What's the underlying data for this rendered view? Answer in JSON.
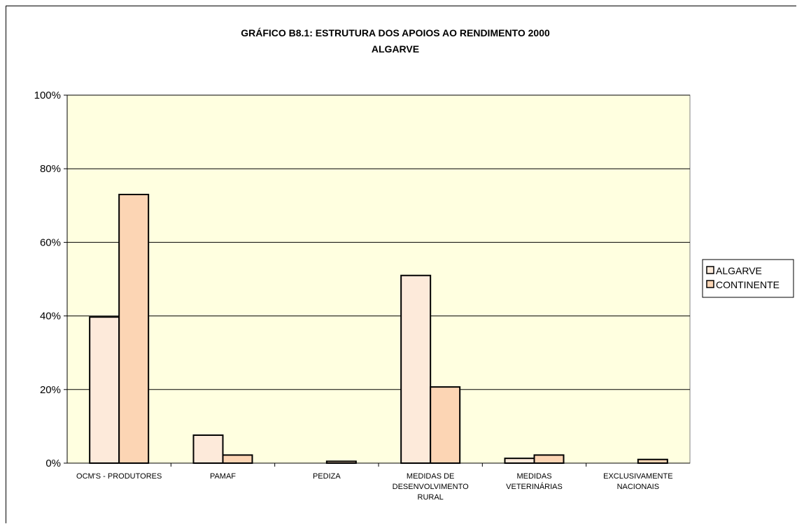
{
  "chart_data": {
    "type": "bar",
    "title": "GRÁFICO B8.1: ESTRUTURA DOS APOIOS AO RENDIMENTO 2000",
    "subtitle": "ALGARVE",
    "categories": [
      [
        "OCM'S - PRODUTORES"
      ],
      [
        "PAMAF"
      ],
      [
        "PEDIZA"
      ],
      [
        "MEDIDAS DE",
        "DESENVOLVIMENTO",
        "RURAL"
      ],
      [
        "MEDIDAS",
        "VETERINÁRIAS"
      ],
      [
        "EXCLUSIVAMENTE",
        "NACIONAIS"
      ]
    ],
    "series": [
      {
        "name": "ALGARVE",
        "values": [
          39.7,
          7.6,
          0.0,
          51.0,
          1.3,
          0.0
        ],
        "color": "#FDEADA"
      },
      {
        "name": "CONTINENTE",
        "values": [
          73.0,
          2.2,
          0.5,
          20.7,
          2.2,
          1.0
        ],
        "color": "#FCD5B4"
      }
    ],
    "yticks": [
      "0%",
      "20%",
      "40%",
      "60%",
      "80%",
      "100%"
    ],
    "ylim": [
      0,
      100
    ],
    "grid": true,
    "legend": "right",
    "plot_background": "#FFFFE0"
  }
}
